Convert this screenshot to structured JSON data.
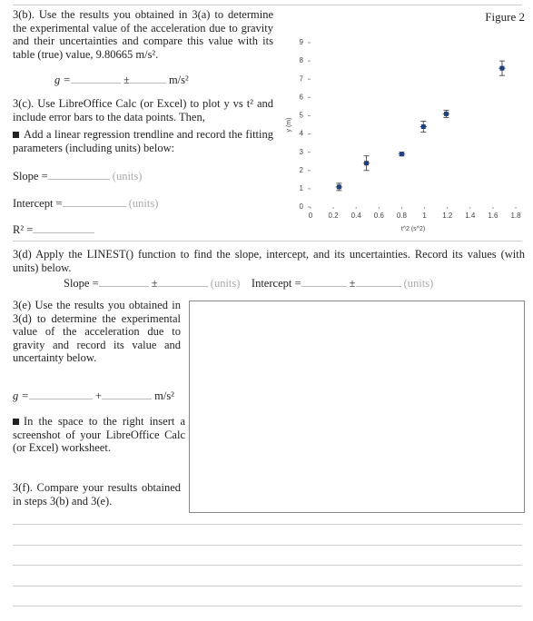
{
  "q3b": {
    "text": "3(b). Use the results you obtained in 3(a) to determine the experimental value of the acceleration due to gravity and their uncertainties and compare this value with its table (true) value, 9.80665 m/s².",
    "g_label": "g =",
    "pm": "±",
    "unit": "m/s²"
  },
  "q3c": {
    "text": "3(c). Use LibreOffice Calc (or Excel) to plot y vs t² and include error bars to the data points. Then,",
    "bullet": "Add a linear regression trendline and record the fitting parameters (including units) below:",
    "slope_label": "Slope =",
    "slope_units": "(units)",
    "intercept_label": "Intercept =",
    "intercept_units": "(units)",
    "r2_label": "R² ="
  },
  "q3d": {
    "text": "3(d) Apply the LINEST() function to find the slope, intercept, and its uncertainties. Record its values (with units) below.",
    "slope_label": "Slope =",
    "slope_pm": "±",
    "slope_units": "(units)",
    "intercept_label": "Intercept =",
    "intercept_pm": "±",
    "intercept_units": "(units)"
  },
  "q3e": {
    "text": "3(e) Use the results you obtained in 3(d) to determine the experimental value of the acceleration due to gravity and record its value and uncertainty below.",
    "g_label": "g =",
    "pm": "+",
    "unit": "m/s²",
    "bullet": "In the space to the right insert a screenshot of your LibreOffice Calc (or Excel) worksheet."
  },
  "q3f": {
    "text": "3(f). Compare your results obtained in steps 3(b) and 3(e)."
  },
  "chart_data": {
    "type": "scatter",
    "title": "Figure 2",
    "x_label": "t^2 (s^2)",
    "y_label": "y (m)",
    "x": [
      0.25,
      0.49,
      0.8,
      0.99,
      1.19,
      1.68
    ],
    "values": [
      1.1,
      2.4,
      2.9,
      4.4,
      5.1,
      7.6
    ],
    "yerr": [
      0.2,
      0.4,
      0.1,
      0.3,
      0.2,
      0.4
    ],
    "xerr": [
      0.03,
      0.03,
      0.03,
      0.03,
      0.03,
      0.03
    ],
    "color": "#1f3f7f",
    "xlim": [
      0,
      1.8
    ],
    "ylim": [
      0,
      9
    ],
    "xticks": [
      0,
      0.2,
      0.4,
      0.6,
      0.8,
      1,
      1.2,
      1.4,
      1.6,
      1.8
    ],
    "yticks": [
      0,
      1,
      2,
      3,
      4,
      5,
      6,
      7,
      8,
      9
    ],
    "grid": false
  }
}
